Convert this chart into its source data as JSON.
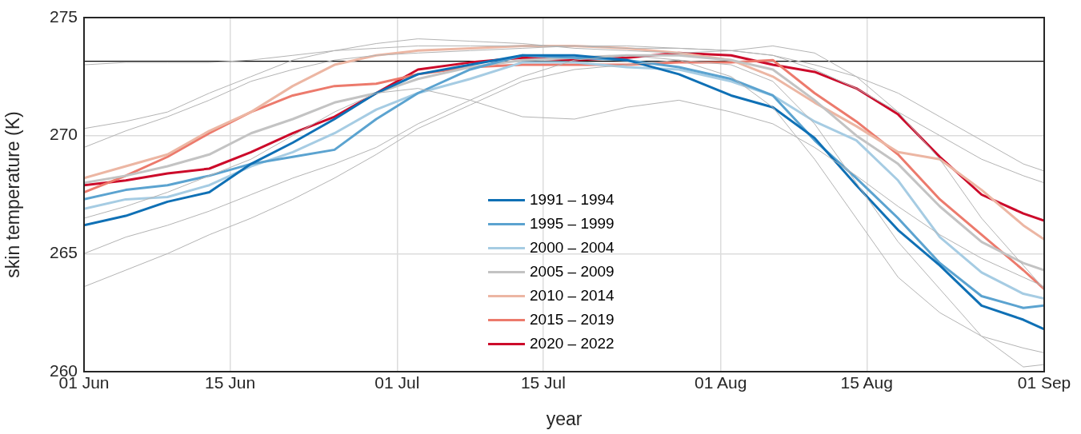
{
  "chart_data": {
    "type": "line",
    "xlabel": "year",
    "ylabel": "skin temperature (K)",
    "x": [
      "--06-01",
      "--06-05",
      "--06-09",
      "--06-13",
      "--06-17",
      "--06-21",
      "--06-25",
      "--06-29",
      "--07-03",
      "--07-08",
      "--07-13",
      "--07-18",
      "--07-23",
      "--07-28",
      "--08-02",
      "--08-06",
      "--08-10",
      "--08-14",
      "--08-18",
      "--08-22",
      "--08-26",
      "--08-30",
      "--09-01"
    ],
    "xlim": [
      "--06-01",
      "--09-01"
    ],
    "xticks": [
      {
        "value": "--06-01",
        "label": "01 Jun"
      },
      {
        "value": "--06-15",
        "label": "15 Jun"
      },
      {
        "value": "--07-01",
        "label": "01 Jul"
      },
      {
        "value": "--07-15",
        "label": "15 Jul"
      },
      {
        "value": "--08-01",
        "label": "01 Aug"
      },
      {
        "value": "--08-15",
        "label": "15 Aug"
      },
      {
        "value": "--09-01",
        "label": "01 Sep"
      }
    ],
    "ylim": [
      260,
      275
    ],
    "yticks": [
      260,
      265,
      270,
      275
    ],
    "grid": true,
    "legend": "bottom",
    "marker": "none",
    "line_style": "solid",
    "ref_lines": [
      {
        "axis": "y",
        "value": 273.15,
        "color": "#000000"
      }
    ],
    "series": [
      {
        "color": "#b3b3b3",
        "values": [
          273.0,
          273.1,
          273.1,
          273.1,
          273.2,
          273.4,
          273.6,
          273.7,
          273.8,
          273.8,
          273.8,
          273.8,
          273.7,
          273.7,
          273.6,
          273.4,
          272.8,
          272.0,
          271.0,
          270.0,
          269.0,
          268.3,
          268.0
        ]
      },
      {
        "color": "#b3b3b3",
        "values": [
          266.5,
          267.0,
          267.6,
          268.3,
          269.0,
          270.0,
          271.0,
          271.8,
          272.0,
          271.5,
          270.8,
          270.7,
          271.2,
          271.5,
          271.0,
          270.5,
          269.5,
          268.3,
          267.0,
          265.8,
          264.8,
          264.0,
          263.6
        ]
      },
      {
        "color": "#b3b3b3",
        "values": [
          263.6,
          264.3,
          265.0,
          265.8,
          266.5,
          267.3,
          268.2,
          269.2,
          270.3,
          271.3,
          272.3,
          272.8,
          273.0,
          273.2,
          273.0,
          272.3,
          270.5,
          268.0,
          265.5,
          263.5,
          261.5,
          260.2,
          260.3
        ]
      },
      {
        "color": "#b3b3b3",
        "values": [
          269.5,
          270.2,
          270.8,
          271.5,
          272.3,
          272.8,
          273.2,
          273.4,
          273.5,
          273.6,
          273.7,
          273.8,
          273.8,
          273.7,
          273.6,
          273.4,
          273.0,
          272.5,
          271.8,
          270.8,
          269.8,
          268.8,
          268.5
        ]
      },
      {
        "color": "#b3b3b3",
        "values": [
          270.3,
          270.6,
          271.0,
          271.8,
          272.5,
          273.2,
          273.6,
          273.9,
          274.1,
          274.0,
          273.9,
          273.7,
          273.6,
          273.5,
          273.6,
          273.8,
          273.5,
          272.5,
          271.0,
          269.0,
          266.5,
          264.5,
          263.5
        ]
      },
      {
        "color": "#b3b3b3",
        "values": [
          265.0,
          265.7,
          266.2,
          266.8,
          267.5,
          268.2,
          268.8,
          269.5,
          270.5,
          271.5,
          272.5,
          273.2,
          273.4,
          273.2,
          272.5,
          271.2,
          269.0,
          266.5,
          264.0,
          262.5,
          261.5,
          261.0,
          260.8
        ]
      },
      {
        "name": "1991 – 1994",
        "color": "#0f70b5",
        "values": [
          266.2,
          266.6,
          267.2,
          267.6,
          268.8,
          269.7,
          270.7,
          271.8,
          272.6,
          273.0,
          273.4,
          273.4,
          273.2,
          272.6,
          271.7,
          271.2,
          269.9,
          267.9,
          266.0,
          264.5,
          262.8,
          262.2,
          261.8
        ]
      },
      {
        "name": "1995 – 1999",
        "color": "#5ba3d0",
        "values": [
          267.3,
          267.7,
          267.9,
          268.3,
          268.8,
          269.1,
          269.4,
          270.7,
          271.8,
          272.8,
          273.4,
          273.3,
          273.2,
          272.9,
          272.4,
          271.7,
          269.8,
          268.2,
          266.5,
          264.6,
          263.2,
          262.7,
          262.8
        ]
      },
      {
        "name": "2000 – 2004",
        "color": "#a6cce3",
        "values": [
          266.9,
          267.3,
          267.4,
          267.9,
          268.7,
          269.3,
          270.1,
          271.1,
          271.8,
          272.4,
          273.1,
          273.1,
          272.9,
          272.8,
          272.3,
          271.7,
          270.6,
          269.8,
          268.1,
          265.7,
          264.2,
          263.3,
          263.1
        ]
      },
      {
        "name": "2005 – 2009",
        "color": "#c3c3c3",
        "values": [
          268.0,
          268.3,
          268.7,
          269.2,
          270.1,
          270.7,
          271.4,
          271.8,
          272.4,
          272.9,
          273.2,
          273.3,
          273.4,
          273.4,
          273.2,
          272.8,
          271.5,
          270.0,
          268.8,
          267.0,
          265.5,
          264.6,
          264.3
        ]
      },
      {
        "name": "2010 – 2014",
        "color": "#ecb6a3",
        "values": [
          268.2,
          268.7,
          269.2,
          270.2,
          271.0,
          272.1,
          273.0,
          273.4,
          273.6,
          273.7,
          273.8,
          273.8,
          273.7,
          273.5,
          273.2,
          272.5,
          271.4,
          270.4,
          269.3,
          269.0,
          267.7,
          266.2,
          265.6
        ]
      },
      {
        "name": "2015 – 2019",
        "color": "#ec7a6c",
        "values": [
          267.6,
          268.3,
          269.1,
          270.1,
          271.0,
          271.7,
          272.1,
          272.2,
          272.6,
          272.9,
          273.0,
          273.0,
          273.0,
          273.1,
          273.1,
          273.2,
          271.8,
          270.6,
          269.2,
          267.3,
          265.8,
          264.3,
          263.5
        ]
      },
      {
        "name": "2020 – 2022",
        "color": "#cc0a2a",
        "values": [
          267.9,
          268.1,
          268.4,
          268.6,
          269.3,
          270.1,
          270.8,
          271.8,
          272.8,
          273.1,
          273.3,
          273.2,
          273.3,
          273.5,
          273.4,
          273.0,
          272.7,
          272.0,
          270.9,
          269.1,
          267.5,
          266.7,
          266.4
        ]
      }
    ]
  }
}
